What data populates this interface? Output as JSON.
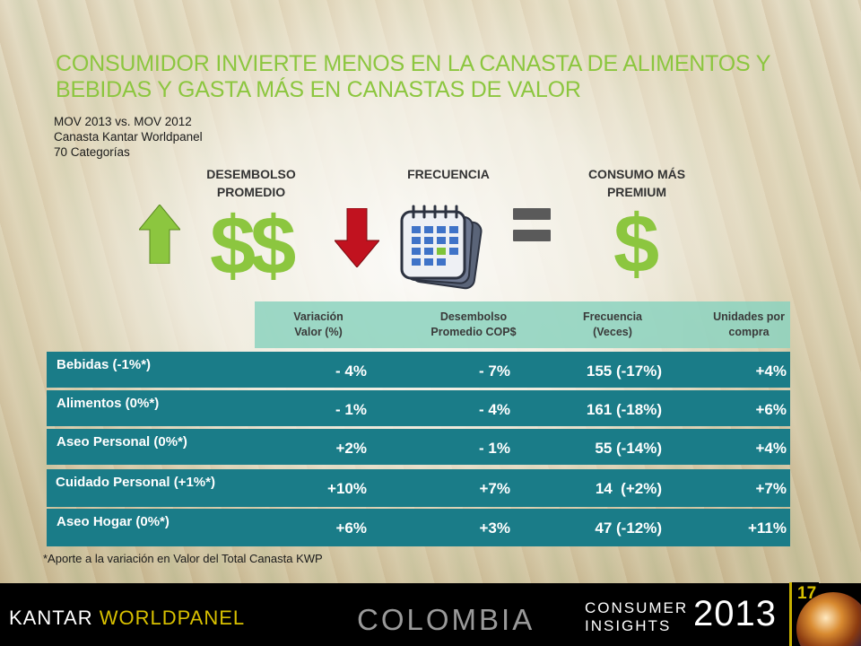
{
  "title": "CONSUMIDOR INVIERTE MENOS EN LA CANASTA DE ALIMENTOS Y BEBIDAS Y GASTA MÁS EN CANASTAS DE VALOR",
  "subtitle_lines": [
    "MOV 2013 vs. MOV 2012",
    "Canasta Kantar Worldpanel",
    "70 Categorías"
  ],
  "indicators": {
    "spend": {
      "label_line1": "DESEMBOLSO",
      "label_line2": "PROMEDIO",
      "symbol": "$$",
      "arrow": "up-arrow-icon"
    },
    "frequency": {
      "label": "FRECUENCIA",
      "arrow": "down-arrow-icon",
      "icon": "calendar-icon"
    },
    "equals": "equals-icon",
    "premium": {
      "label_line1": "CONSUMO MÁS",
      "label_line2": "PREMIUM",
      "symbol": "$"
    }
  },
  "colors": {
    "accent": "#8cc63f",
    "row_bg": "#1a7c88",
    "header_band": "#8cd2be",
    "up": "#8cc63f",
    "down": "#c1121f"
  },
  "table": {
    "headers": [
      {
        "line1": "Variación",
        "line2": "Valor (%)"
      },
      {
        "line1": "Desembolso",
        "line2": "Promedio COP$"
      },
      {
        "line1": "Frecuencia",
        "line2": "(Veces)"
      },
      {
        "line1": "Unidades por",
        "line2": "compra"
      }
    ],
    "rows": [
      {
        "label": "Bebidas (-1%*)",
        "values": [
          "- 4%",
          "- 7%",
          "155 (-17%)",
          "+4%"
        ]
      },
      {
        "label": "Alimentos (0%*)",
        "values": [
          "- 1%",
          "- 4%",
          "161 (-18%)",
          "+6%"
        ]
      },
      {
        "label": "Aseo Personal (0%*)",
        "values": [
          "+2%",
          "- 1%",
          "55 (-14%)",
          "+4%"
        ]
      },
      {
        "label": "Cuidado Personal (+1%*)",
        "values": [
          "+10%",
          "+7%",
          "14  (+2%)",
          "+7%"
        ]
      },
      {
        "label": "Aseo Hogar (0%*)",
        "values": [
          "+6%",
          "+3%",
          "47 (-12%)",
          "+11%"
        ]
      }
    ]
  },
  "footnote": "*Aporte a la variación en Valor del Total Canasta KWP",
  "footer": {
    "brand_part1": "KANTAR ",
    "brand_part2": "WORLDPANEL",
    "country": "COLOMBIA",
    "consumer": "CONSUMER",
    "insights": "INSIGHTS",
    "year": "2013",
    "page": "17"
  }
}
